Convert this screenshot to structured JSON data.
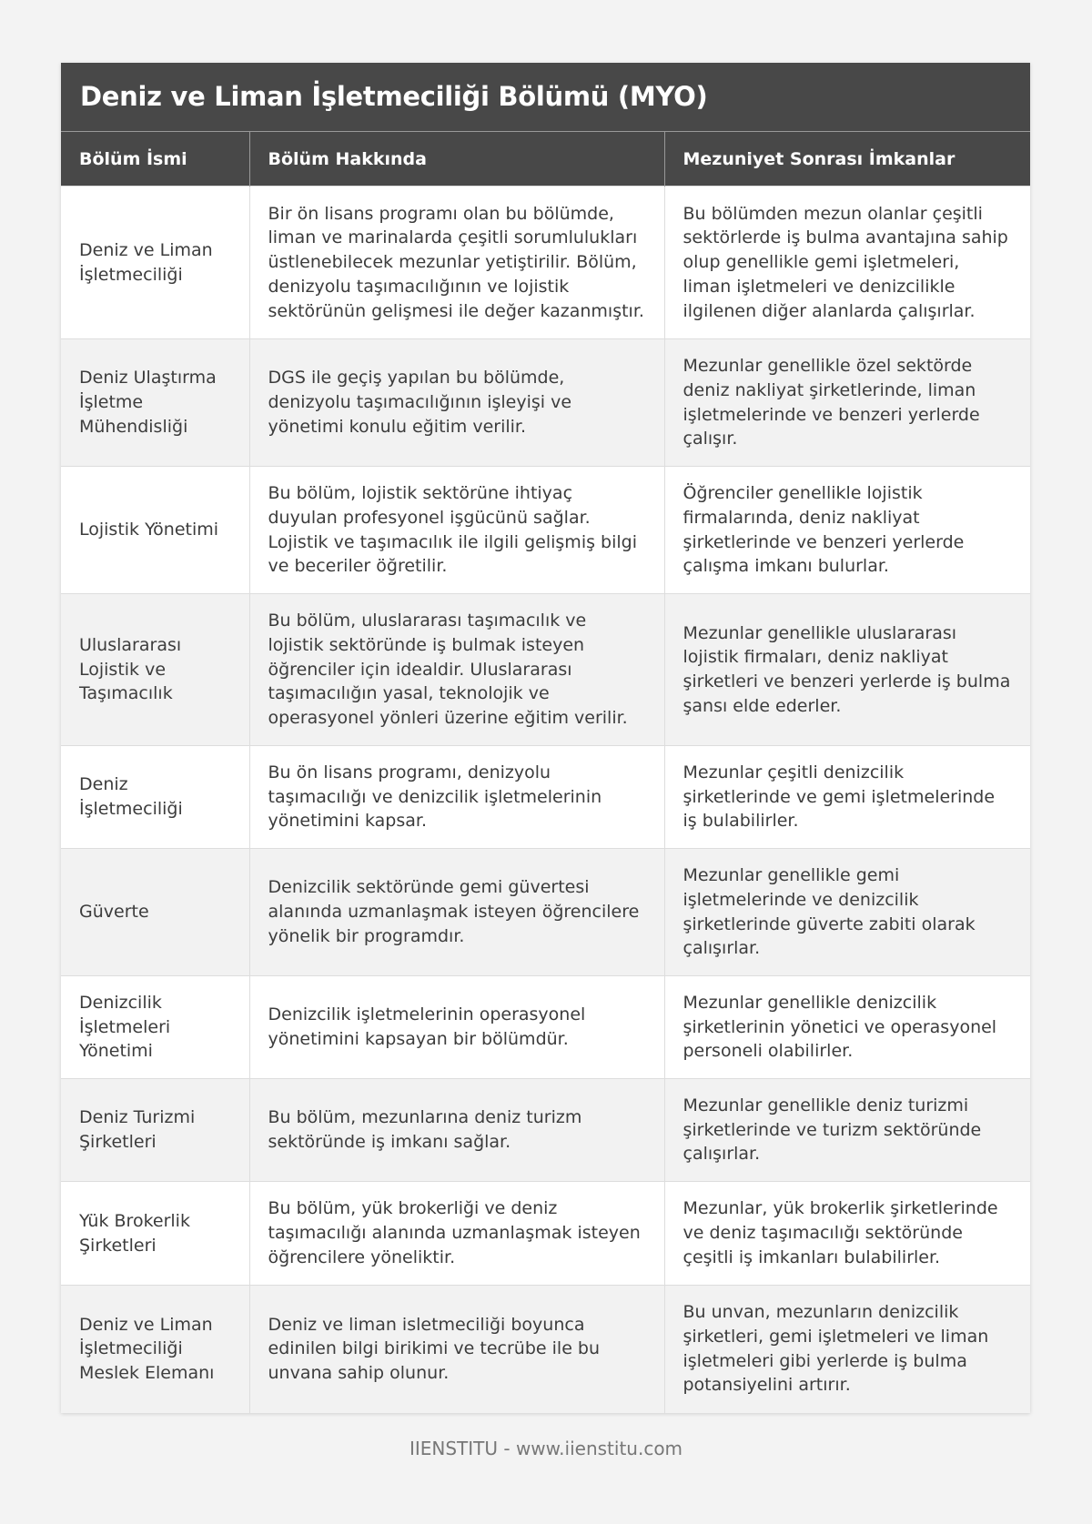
{
  "title": "Deniz ve Liman İşletmeciliği Bölümü (MYO)",
  "columns": [
    "Bölüm İsmi",
    "Bölüm Hakkında",
    "Mezuniyet Sonrası İmkanlar"
  ],
  "rows": [
    [
      "Deniz ve Liman İşletmeciliği",
      "Bir ön lisans programı olan bu bölümde, liman ve marinalarda çeşitli sorumlulukları üstlenebilecek mezunlar yetiştirilir. Bölüm, denizyolu taşımacılığının ve lojistik sektörünün gelişmesi ile değer kazanmıştır.",
      "Bu bölümden mezun olanlar çeşitli sektörlerde iş bulma avantajına sahip olup genellikle gemi işletmeleri, liman işletmeleri ve denizcilikle ilgilenen diğer alanlarda çalışırlar."
    ],
    [
      "Deniz Ulaştırma İşletme Mühendisliği",
      "DGS ile geçiş yapılan bu bölümde, denizyolu taşımacılığının işleyişi ve yönetimi konulu eğitim verilir.",
      "Mezunlar genellikle özel sektörde deniz nakliyat şirketlerinde, liman işletmelerinde ve benzeri yerlerde çalışır."
    ],
    [
      "Lojistik Yönetimi",
      "Bu bölüm, lojistik sektörüne ihtiyaç duyulan profesyonel işgücünü sağlar. Lojistik ve taşımacılık ile ilgili gelişmiş bilgi ve beceriler öğretilir.",
      "Öğrenciler genellikle lojistik firmalarında, deniz nakliyat şirketlerinde ve benzeri yerlerde çalışma imkanı bulurlar."
    ],
    [
      "Uluslararası Lojistik ve Taşımacılık",
      "Bu bölüm, uluslararası taşımacılık ve lojistik sektöründe iş bulmak isteyen öğrenciler için idealdir. Uluslararası taşımacılığın yasal, teknolojik ve operasyonel yönleri üzerine eğitim verilir.",
      "Mezunlar genellikle uluslararası lojistik firmaları, deniz nakliyat şirketleri ve benzeri yerlerde iş bulma şansı elde ederler."
    ],
    [
      "Deniz İşletmeciliği",
      "Bu ön lisans programı, denizyolu taşımacılığı ve denizcilik işletmelerinin yönetimini kapsar.",
      "Mezunlar çeşitli denizcilik şirketlerinde ve gemi işletmelerinde iş bulabilirler."
    ],
    [
      "Güverte",
      "Denizcilik sektöründe gemi güvertesi alanında uzmanlaşmak isteyen öğrencilere yönelik bir programdır.",
      "Mezunlar genellikle gemi işletmelerinde ve denizcilik şirketlerinde güverte zabiti olarak çalışırlar."
    ],
    [
      "Denizcilik İşletmeleri Yönetimi",
      "Denizcilik işletmelerinin operasyonel yönetimini kapsayan bir bölümdür.",
      "Mezunlar genellikle denizcilik şirketlerinin yönetici ve operasyonel personeli olabilirler."
    ],
    [
      "Deniz Turizmi Şirketleri",
      "Bu bölüm, mezunlarına deniz turizm sektöründe iş imkanı sağlar.",
      "Mezunlar genellikle deniz turizmi şirketlerinde ve turizm sektöründe çalışırlar."
    ],
    [
      "Yük Brokerlik Şirketleri",
      "Bu bölüm, yük brokerliği ve deniz taşımacılığı alanında uzmanlaşmak isteyen öğrencilere yöneliktir.",
      "Mezunlar, yük brokerlik şirketlerinde ve deniz taşımacılığı sektöründe çeşitli iş imkanları bulabilirler."
    ],
    [
      "Deniz ve Liman İşletmeciliği Meslek Elemanı",
      "Deniz ve liman isletmeciliği boyunca edinilen bilgi birikimi ve tecrübe ile bu unvana sahip olunur.",
      "Bu unvan, mezunların denizcilik şirketleri, gemi işletmeleri ve liman işletmeleri gibi yerlerde iş bulma potansiyelini artırır."
    ]
  ],
  "footer": "IIENSTITU - www.iienstitu.com"
}
